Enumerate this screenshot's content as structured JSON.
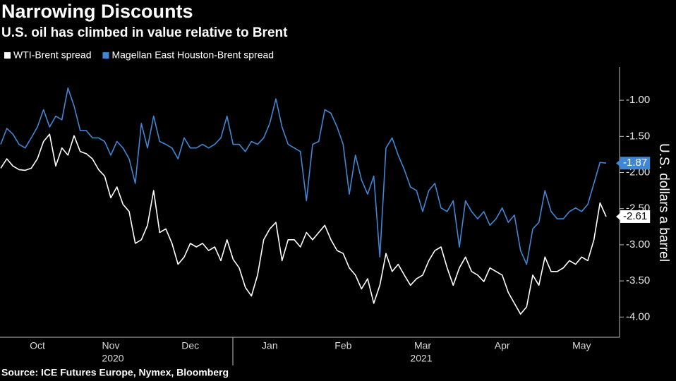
{
  "chart_data": {
    "type": "line",
    "title": "Narrowing Discounts",
    "subtitle": "U.S. oil has climbed in value relative to Brent",
    "y_label": "U.S. dollars a barrel",
    "source": "Source: ICE Futures Europe, Nymex, Bloomberg",
    "years": [
      "2020",
      "2021"
    ],
    "categories": [
      null,
      null,
      null,
      null,
      null,
      null,
      "Oct",
      null,
      null,
      null,
      null,
      null,
      null,
      null,
      null,
      null,
      null,
      null,
      "Nov",
      null,
      null,
      null,
      null,
      null,
      null,
      null,
      null,
      null,
      null,
      null,
      null,
      "Dec",
      null,
      null,
      null,
      null,
      null,
      null,
      null,
      null,
      null,
      null,
      null,
      null,
      "Jan",
      null,
      null,
      null,
      null,
      null,
      null,
      null,
      null,
      null,
      null,
      null,
      "Feb",
      null,
      null,
      null,
      null,
      null,
      null,
      null,
      null,
      null,
      null,
      null,
      null,
      "Mar",
      null,
      null,
      null,
      null,
      null,
      null,
      null,
      null,
      null,
      null,
      null,
      null,
      "Apr",
      null,
      null,
      null,
      null,
      null,
      null,
      null,
      null,
      null,
      null,
      null,
      null,
      "May",
      null,
      null,
      null,
      null
    ],
    "series": [
      {
        "name": "WTI-Brent spread",
        "color": "#ffffff",
        "values": [
          -1.94,
          -1.81,
          -1.91,
          -1.96,
          -1.97,
          -1.94,
          -1.81,
          -1.57,
          -1.47,
          -1.91,
          -1.66,
          -1.76,
          -1.49,
          -1.71,
          -1.74,
          -1.81,
          -1.96,
          -2.05,
          -2.35,
          -2.2,
          -2.44,
          -2.54,
          -2.98,
          -2.93,
          -2.73,
          -2.25,
          -2.83,
          -2.78,
          -2.98,
          -3.27,
          -3.17,
          -2.98,
          -3.03,
          -2.98,
          -3.08,
          -3.03,
          -3.22,
          -2.93,
          -3.2,
          -3.32,
          -3.59,
          -3.71,
          -3.42,
          -2.93,
          -2.78,
          -2.69,
          -3.22,
          -2.93,
          -2.93,
          -3.03,
          -2.83,
          -2.93,
          -2.83,
          -2.73,
          -2.93,
          -3.08,
          -3.12,
          -3.32,
          -3.42,
          -3.61,
          -3.47,
          -3.81,
          -3.56,
          -3.12,
          -3.37,
          -3.27,
          -3.42,
          -3.56,
          -3.47,
          -3.42,
          -3.22,
          -3.08,
          -3.03,
          -3.32,
          -3.56,
          -3.32,
          -3.17,
          -3.37,
          -3.42,
          -3.51,
          -3.32,
          -3.37,
          -3.42,
          -3.66,
          -3.81,
          -3.96,
          -3.86,
          -3.42,
          -3.56,
          -3.17,
          -3.37,
          -3.37,
          -3.32,
          -3.22,
          -3.27,
          -3.17,
          -3.22,
          -2.93,
          -2.42,
          -2.61
        ]
      },
      {
        "name": "Magellan East Houston-Brent spread",
        "color": "#3f87d6",
        "values": [
          -1.61,
          -1.39,
          -1.47,
          -1.61,
          -1.66,
          -1.52,
          -1.37,
          -1.13,
          -1.37,
          -1.22,
          -1.27,
          -0.83,
          -1.08,
          -1.42,
          -1.42,
          -1.52,
          -1.52,
          -1.57,
          -1.76,
          -1.57,
          -1.66,
          -1.81,
          -2.15,
          -1.32,
          -1.66,
          -1.22,
          -1.57,
          -1.61,
          -1.66,
          -1.81,
          -1.52,
          -1.66,
          -1.66,
          -1.61,
          -1.66,
          -1.61,
          -1.52,
          -1.22,
          -1.61,
          -1.61,
          -1.71,
          -1.57,
          -1.61,
          -1.52,
          -1.32,
          -0.98,
          -1.37,
          -1.61,
          -1.66,
          -1.71,
          -2.39,
          -1.61,
          -1.57,
          -1.13,
          -1.18,
          -1.37,
          -1.61,
          -2.3,
          -1.76,
          -2.1,
          -2.3,
          -2.05,
          -3.17,
          -1.66,
          -1.52,
          -1.76,
          -1.96,
          -2.2,
          -2.25,
          -2.54,
          -2.25,
          -2.15,
          -2.49,
          -2.54,
          -2.39,
          -3.03,
          -2.39,
          -2.54,
          -2.64,
          -2.54,
          -2.73,
          -2.64,
          -2.49,
          -2.69,
          -2.59,
          -3.08,
          -3.27,
          -2.78,
          -2.69,
          -2.25,
          -2.54,
          -2.64,
          -2.64,
          -2.54,
          -2.49,
          -2.54,
          -2.44,
          -2.15,
          -1.86,
          -1.87
        ]
      }
    ],
    "ylim": [
      -4.28,
      -0.54
    ],
    "yticks": [
      {
        "value": -1,
        "label": "-1.00"
      },
      {
        "value": -1.5,
        "label": "-1.50"
      },
      {
        "value": -2,
        "label": "-2.00"
      },
      {
        "value": -2.5,
        "label": "-2.50"
      },
      {
        "value": -3,
        "label": "-3.00"
      },
      {
        "value": -3.5,
        "label": "-3.50"
      },
      {
        "value": -4,
        "label": "-4.00"
      }
    ],
    "grid": false,
    "legend": "top-left"
  }
}
